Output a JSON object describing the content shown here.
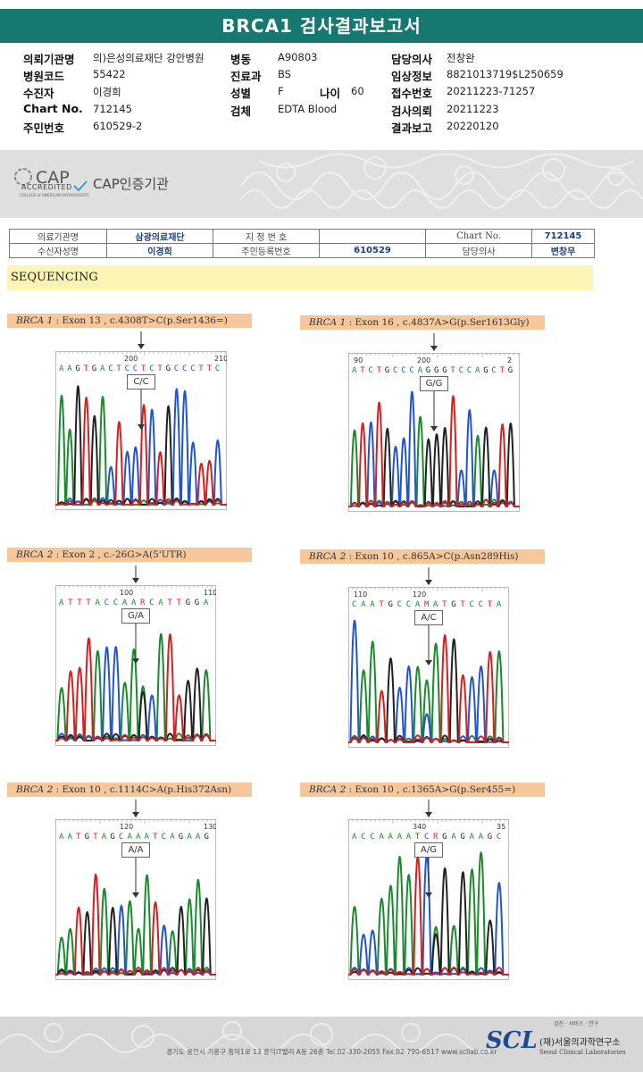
{
  "header": {
    "title": "BRCA1 검사결과보고서",
    "rows": [
      {
        "l1": "의뢰기관명",
        "v1": "의)은성의료재단 강안병원",
        "l2": "병동",
        "v2": "A90803",
        "l3": "담당의사",
        "v3": "전창완"
      },
      {
        "l1": "병원코드",
        "v1": "55422",
        "l2": "진료과",
        "v2": "BS",
        "l3": "임상정보",
        "v3": "8821013719$L250659"
      },
      {
        "l1": "수진자",
        "v1": "이경희",
        "l2": "성별",
        "v2": "F",
        "l2b": "나이",
        "v2b": "60",
        "l3": "접수번호",
        "v3": "20211223-71257"
      },
      {
        "l1": "Chart No.",
        "v1": "712145",
        "l2": "검체",
        "v2": "EDTA Blood",
        "l3": "검사의뢰",
        "v3": "20211223"
      },
      {
        "l1": "주민번호",
        "v1": "610529-2",
        "l2": "",
        "v2": "",
        "l3": "결과보고",
        "v3": "20220120"
      }
    ]
  },
  "cap": {
    "logo_text": "CAP",
    "accredited": "ACCREDITED",
    "small": "COLLEGE of AMERICAN PATHOLOGISTS",
    "institution": "CAP인증기관"
  },
  "info_table": {
    "r1": [
      "의료기관명",
      "삼광의료재단",
      "지 정 번 호",
      "",
      "Chart No.",
      "712145"
    ],
    "r2": [
      "수신자성명",
      "이경희",
      "주민등록번호",
      "610529",
      "담당의사",
      "변창무"
    ]
  },
  "sequencing_label": "SEQUENCING",
  "panels": [
    {
      "gene": "BRCA 1",
      "rest": " : Exon 13 , c.4308T>C(p.Ser1436=)",
      "seq": "AAGTGACTCCTCTGCCCTTC",
      "n1": "200",
      "n2": "210",
      "call": "C/C"
    },
    {
      "gene": "BRCA 1",
      "rest": " : Exon 16 , c.4837A>G(p.Ser1613Gly)",
      "seq": "ATCTGCCCAGGGTCCAGCTG",
      "n0": "90",
      "n1": "200",
      "n2": "2",
      "call": "G/G"
    },
    {
      "gene": "BRCA 2",
      "rest": " : Exon 2 , c.-26G>A(5'UTR)",
      "seq": "ATTTACCAARCATTGGA",
      "n1": "100",
      "n2": "110",
      "call": "G/A"
    },
    {
      "gene": "BRCA 2",
      "rest": " : Exon 10 , c.865A>C(p.Asn289His)",
      "seq": "CAATGCCAMATGTCCTA",
      "n0": "110",
      "n1": "120",
      "call": "A/C"
    },
    {
      "gene": "BRCA 2",
      "rest": " : Exon 10 , c.1114C>A(p.His372Asn)",
      "seq": "AATGTAGCAAATCAGAAG",
      "n1": "120",
      "n2": "130",
      "call": "A/A"
    },
    {
      "gene": "BRCA 2",
      "rest": " : Exon 10 , c.1365A>G(p.Ser455=)",
      "seq": "ACCAAAATCRGAGAAGC",
      "n1": "340",
      "n2": "35",
      "call": "A/G"
    }
  ],
  "footer": {
    "address": "경기도 용인시 기흥구 흥덕1로 13 흥덕IT밸리 A동 26층  Tel.02-330-2055  Fax.02-790-6517  www.scllab.co.kr",
    "brand": "SCL",
    "tagline": "검진 · 서비스 · 연구",
    "name_kr": "(재)서울의과학연구소",
    "name_en": "Seoul Clinical Laboratories"
  },
  "colors": {
    "title": "#16786f",
    "A": "#1a8a2e",
    "C": "#2255cc",
    "G": "#222222",
    "T": "#d42020",
    "caption": "#f6c79a"
  }
}
